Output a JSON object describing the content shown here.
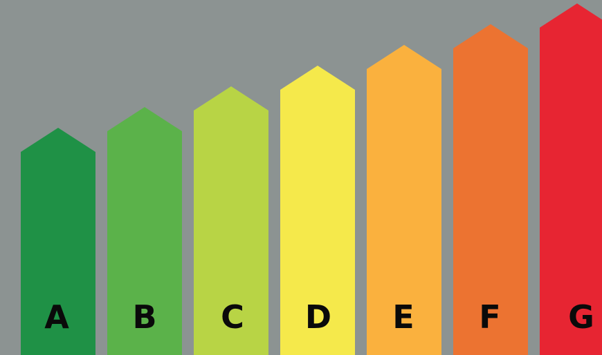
{
  "background_color": "#8c9392",
  "letter_color": "#0a0a0a",
  "classes": [
    {
      "label": "A",
      "color": "#1f9146"
    },
    {
      "label": "B",
      "color": "#5bb24a"
    },
    {
      "label": "C",
      "color": "#b8d445"
    },
    {
      "label": "D",
      "color": "#f5e94b"
    },
    {
      "label": "E",
      "color": "#fab13e"
    },
    {
      "label": "F",
      "color": "#ec7331"
    },
    {
      "label": "G",
      "color": "#e72532"
    }
  ]
}
